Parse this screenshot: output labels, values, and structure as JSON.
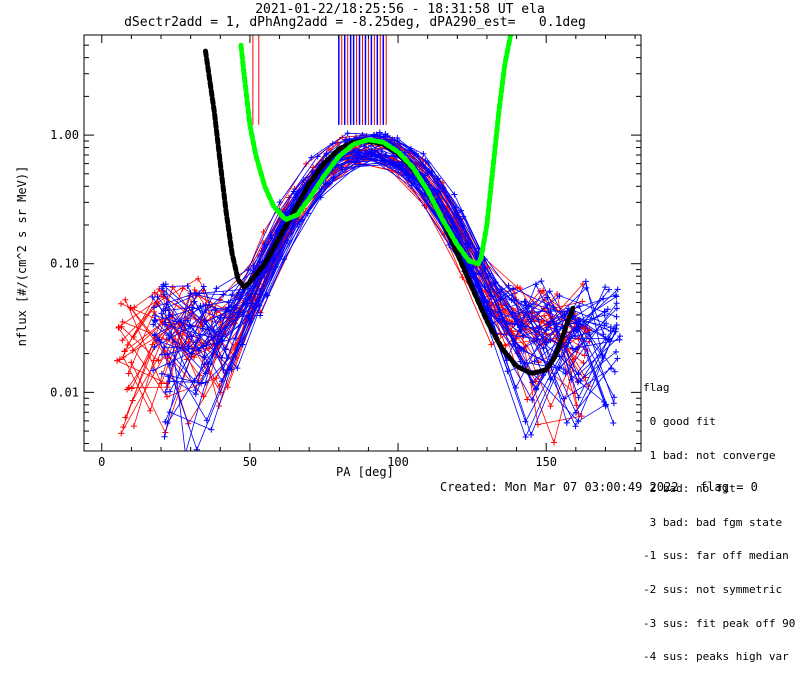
{
  "chart_data": {
    "type": "scatter",
    "title": "2021-01-22/18:25:56 - 18:31:58 UT ela",
    "subtitle": "dSectr2add = 1, dPhAng2add = -8.25deg, dPA290_est=   0.1deg",
    "xlabel": "PA [deg]",
    "ylabel": "nflux [#/(cm^2 s sr MeV)]",
    "x_ticks": [
      "0",
      "50",
      "100",
      "150"
    ],
    "y_ticks": [
      "0.01",
      "0.10",
      "1.00"
    ],
    "xlim": [
      -6,
      182
    ],
    "ylim": [
      0.0035,
      6.0
    ],
    "y_scale": "log",
    "colors": {
      "red_series": "#ff0000",
      "blue_series": "#0000ff",
      "black_fit": "#000000",
      "green_fit": "#00ff00"
    },
    "series": [
      {
        "color": "#000000",
        "style": "thick-dashed",
        "x": [
          35,
          38,
          40,
          42,
          44,
          46,
          48,
          50,
          55,
          60,
          65,
          70,
          75,
          80,
          85,
          90,
          95,
          100,
          105,
          110,
          115,
          120,
          125,
          130,
          135,
          140,
          145,
          150,
          153,
          155,
          157,
          159
        ],
        "y": [
          4.5,
          1.5,
          0.6,
          0.25,
          0.12,
          0.075,
          0.066,
          0.072,
          0.1,
          0.16,
          0.26,
          0.42,
          0.6,
          0.78,
          0.88,
          0.9,
          0.85,
          0.72,
          0.55,
          0.37,
          0.22,
          0.12,
          0.065,
          0.036,
          0.022,
          0.016,
          0.014,
          0.015,
          0.019,
          0.025,
          0.034,
          0.045
        ]
      },
      {
        "color": "#00ff00",
        "style": "thick-dashed",
        "x": [
          47,
          48,
          50,
          52,
          55,
          58,
          62,
          66,
          70,
          75,
          80,
          85,
          90,
          95,
          100,
          105,
          110,
          115,
          120,
          124,
          127,
          128,
          130,
          132,
          134,
          136,
          138
        ],
        "y": [
          5.0,
          3.0,
          1.2,
          0.7,
          0.4,
          0.28,
          0.22,
          0.24,
          0.32,
          0.48,
          0.68,
          0.85,
          0.92,
          0.88,
          0.74,
          0.56,
          0.37,
          0.22,
          0.14,
          0.105,
          0.1,
          0.11,
          0.2,
          0.55,
          1.5,
          3.5,
          6.0
        ]
      }
    ],
    "markers": {
      "red": {
        "x_range": [
          8,
          162
        ],
        "peak_x": 90,
        "peak_y": 0.85
      },
      "blue": {
        "x_range": [
          20,
          172
        ],
        "peak_x": 90,
        "peak_y": 0.9
      }
    },
    "vertical_lines": {
      "red_x": [
        51,
        53,
        81,
        83,
        86,
        88,
        90,
        92,
        94,
        96
      ],
      "blue_x": [
        80,
        82,
        84,
        85,
        87,
        89,
        91,
        93,
        95
      ]
    },
    "legend": {
      "title": "flag",
      "items": [
        " 0 good fit",
        " 1 bad: not converge",
        " 2 bad: no fit",
        " 3 bad: bad fgm state",
        "-1 sus: far off median",
        "-2 sus: not symmetric",
        "-3 sus: fit peak off 90",
        "-4 sus: peaks high var"
      ]
    },
    "footer": "Created: Mon Mar 07 03:00:49 2022   flag = 0"
  }
}
